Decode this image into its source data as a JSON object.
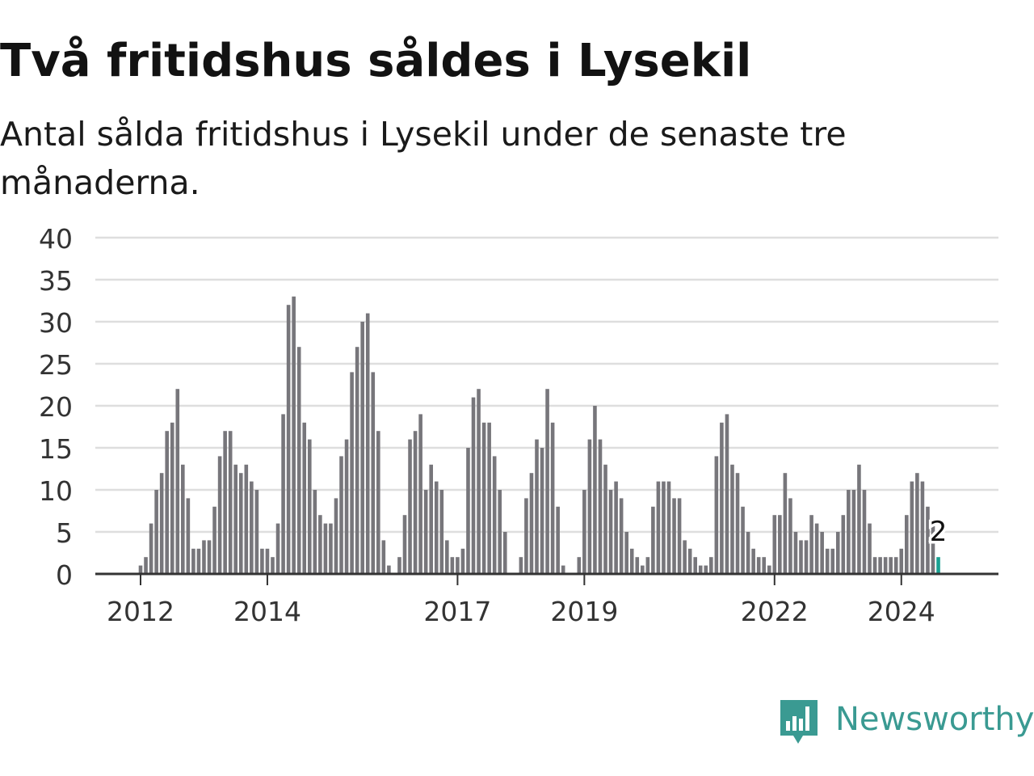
{
  "title": "Två fritidshus såldes i Lysekil",
  "subtitle": "Antal sålda fritidshus i Lysekil under de senaste tre månaderna.",
  "logo": {
    "text": "Newsworthy",
    "icon": "newsworthy-logo-icon",
    "color": "#3a9a92"
  },
  "chart_data": {
    "type": "bar",
    "start_month": "2012-01",
    "frequency": "monthly",
    "ylim": [
      0,
      40
    ],
    "yticks": [
      0,
      5,
      10,
      15,
      20,
      25,
      30,
      35,
      40
    ],
    "xticks": [
      {
        "label": "2012",
        "month_index": 0
      },
      {
        "label": "2014",
        "month_index": 24
      },
      {
        "label": "2017",
        "month_index": 60
      },
      {
        "label": "2019",
        "month_index": 84
      },
      {
        "label": "2022",
        "month_index": 120
      },
      {
        "label": "2024",
        "month_index": 144
      }
    ],
    "grid": true,
    "colors": {
      "bar": "#77767b",
      "highlight": "#1aa192",
      "grid": "#dedede",
      "axis": "#333333"
    },
    "highlight_label": "2",
    "values": [
      1,
      2,
      6,
      10,
      12,
      17,
      18,
      22,
      13,
      9,
      3,
      3,
      4,
      4,
      8,
      14,
      17,
      17,
      13,
      12,
      13,
      11,
      10,
      3,
      3,
      2,
      6,
      19,
      32,
      33,
      27,
      18,
      16,
      10,
      7,
      6,
      6,
      9,
      14,
      16,
      24,
      27,
      30,
      31,
      24,
      17,
      4,
      1,
      0,
      2,
      7,
      16,
      17,
      19,
      10,
      13,
      11,
      10,
      4,
      2,
      2,
      3,
      15,
      21,
      22,
      18,
      18,
      14,
      10,
      5,
      0,
      0,
      2,
      9,
      12,
      16,
      15,
      22,
      18,
      8,
      1,
      0,
      0,
      2,
      10,
      16,
      20,
      16,
      13,
      10,
      11,
      9,
      5,
      3,
      2,
      1,
      2,
      8,
      11,
      11,
      11,
      9,
      9,
      4,
      3,
      2,
      1,
      1,
      2,
      14,
      18,
      19,
      13,
      12,
      8,
      5,
      3,
      2,
      2,
      1,
      7,
      7,
      12,
      9,
      5,
      4,
      4,
      7,
      6,
      5,
      3,
      3,
      5,
      7,
      10,
      10,
      13,
      10,
      6,
      2,
      2,
      2,
      2,
      2,
      3,
      7,
      11,
      12,
      11,
      8,
      6,
      2
    ]
  }
}
